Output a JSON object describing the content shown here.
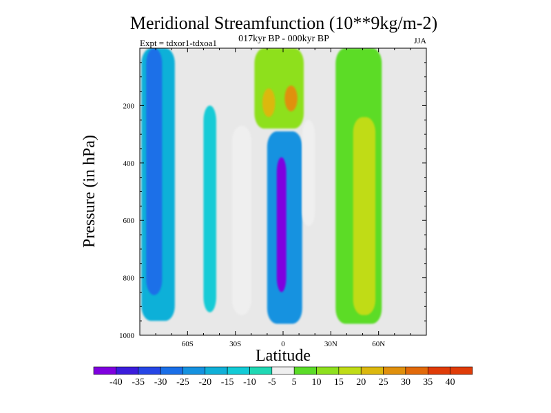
{
  "chart_data": {
    "type": "heatmap",
    "title": "Meridional Streamfunction (10**9kg/m-2)",
    "subtitle": "017kyr BP - 000kyr BP",
    "expt_label": "Expt = tdxor1-tdxoa1",
    "season": "JJA",
    "xlabel": "Latitude",
    "ylabel": "Pressure (in hPa)",
    "xlim": [
      -90,
      90
    ],
    "ylim": [
      1000,
      0
    ],
    "x_ticks": [
      {
        "value": -60,
        "label": "60S"
      },
      {
        "value": -30,
        "label": "30S"
      },
      {
        "value": 0,
        "label": "0"
      },
      {
        "value": 30,
        "label": "30N"
      },
      {
        "value": 60,
        "label": "60N"
      }
    ],
    "y_ticks": [
      {
        "value": 200,
        "label": "200"
      },
      {
        "value": 400,
        "label": "400"
      },
      {
        "value": 600,
        "label": "600"
      },
      {
        "value": 800,
        "label": "800"
      },
      {
        "value": 1000,
        "label": "1000"
      }
    ],
    "colorbar": {
      "labels": [
        "-40",
        "-35",
        "-30",
        "-25",
        "-20",
        "-15",
        "-10",
        "-5",
        "5",
        "10",
        "15",
        "20",
        "25",
        "30",
        "35",
        "40"
      ],
      "colors": [
        "#7f00df",
        "#3b1cdc",
        "#2646e6",
        "#1a6fe8",
        "#1592e0",
        "#10b0d8",
        "#12cbd6",
        "#1fd8b4",
        "#efefef",
        "#5bdc28",
        "#8ee01e",
        "#c0dc16",
        "#dcb80e",
        "#e0900c",
        "#e26a0a",
        "#e03c08"
      ]
    },
    "background_color": "#e8e8e8",
    "regions": [
      {
        "name": "sh-polar-cell",
        "lat": [
          -89,
          -68
        ],
        "p": [
          0,
          950
        ],
        "value": -12
      },
      {
        "name": "sh-polar-core",
        "lat": [
          -86,
          -76
        ],
        "p": [
          0,
          860
        ],
        "value": -25
      },
      {
        "name": "sh-30s-band",
        "lat": [
          -32,
          -20
        ],
        "p": [
          270,
          930
        ],
        "value": 8
      },
      {
        "name": "sh-midlat-cell",
        "lat": [
          -50,
          -42
        ],
        "p": [
          200,
          920
        ],
        "value": -8
      },
      {
        "name": "tropical-neg-cell",
        "lat": [
          -10,
          12
        ],
        "p": [
          290,
          960
        ],
        "value": -20
      },
      {
        "name": "tropical-neg-core",
        "lat": [
          -4,
          2
        ],
        "p": [
          380,
          850
        ],
        "value": -38
      },
      {
        "name": "upper-pos-cell",
        "lat": [
          -18,
          13
        ],
        "p": [
          0,
          280
        ],
        "value": 15
      },
      {
        "name": "upper-pos-core-s",
        "lat": [
          -13,
          -5
        ],
        "p": [
          140,
          240
        ],
        "value": 27
      },
      {
        "name": "upper-pos-core-n",
        "lat": [
          1,
          9
        ],
        "p": [
          130,
          220
        ],
        "value": 30
      },
      {
        "name": "nh-subtropic-band",
        "lat": [
          12,
          20
        ],
        "p": [
          250,
          620
        ],
        "value": 8
      },
      {
        "name": "nh-midlat-cell",
        "lat": [
          33,
          62
        ],
        "p": [
          0,
          960
        ],
        "value": 12
      },
      {
        "name": "nh-midlat-core",
        "lat": [
          44,
          58
        ],
        "p": [
          240,
          930
        ],
        "value": 22
      }
    ]
  }
}
